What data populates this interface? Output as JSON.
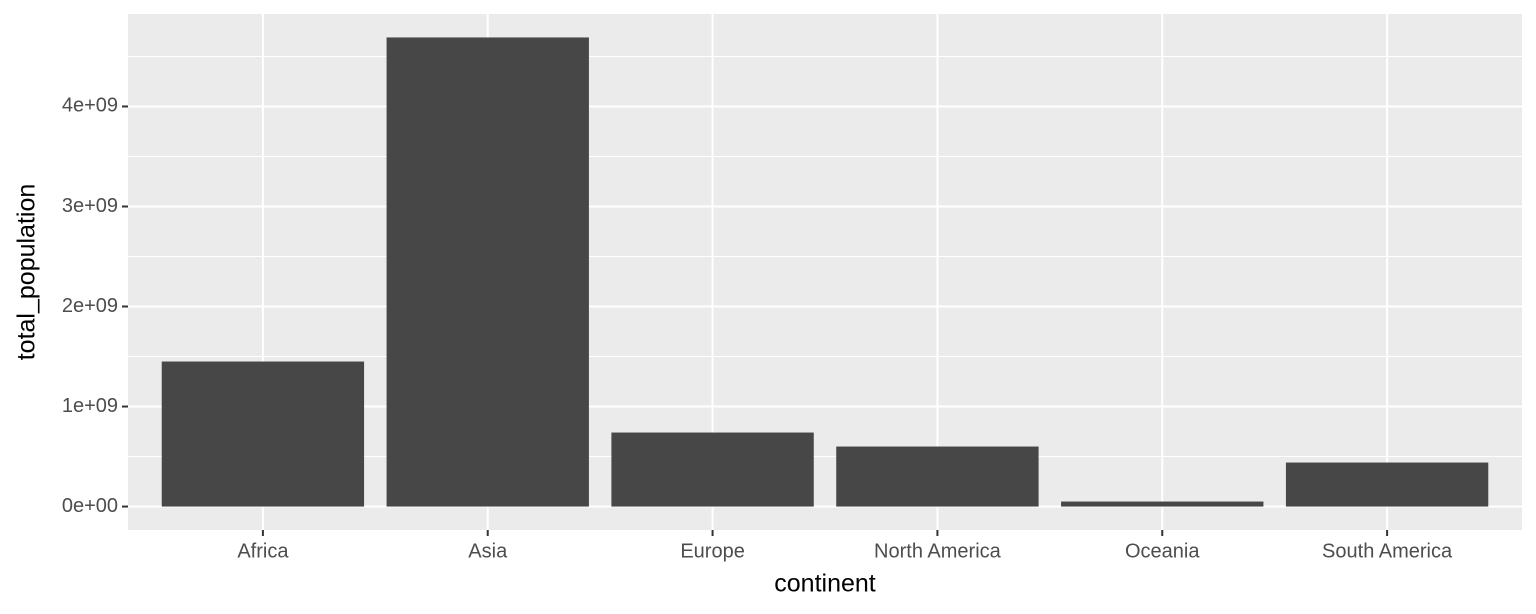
{
  "chart_data": {
    "type": "bar",
    "x_label": "continent",
    "y_label": "total_population",
    "categories": [
      "Africa",
      "Asia",
      "Europe",
      "North America",
      "Oceania",
      "South America"
    ],
    "values": [
      1450000000,
      4690000000,
      740000000,
      600000000,
      50000000,
      440000000
    ],
    "color": "#474747",
    "ylim": [
      -234500000,
      4924500000
    ],
    "yticks": [
      {
        "value": 0,
        "label": "0e+00"
      },
      {
        "value": 1000000000,
        "label": "1e+09"
      },
      {
        "value": 2000000000,
        "label": "2e+09"
      },
      {
        "value": 3000000000,
        "label": "3e+09"
      },
      {
        "value": 4000000000,
        "label": "4e+09"
      }
    ],
    "grid": true
  }
}
